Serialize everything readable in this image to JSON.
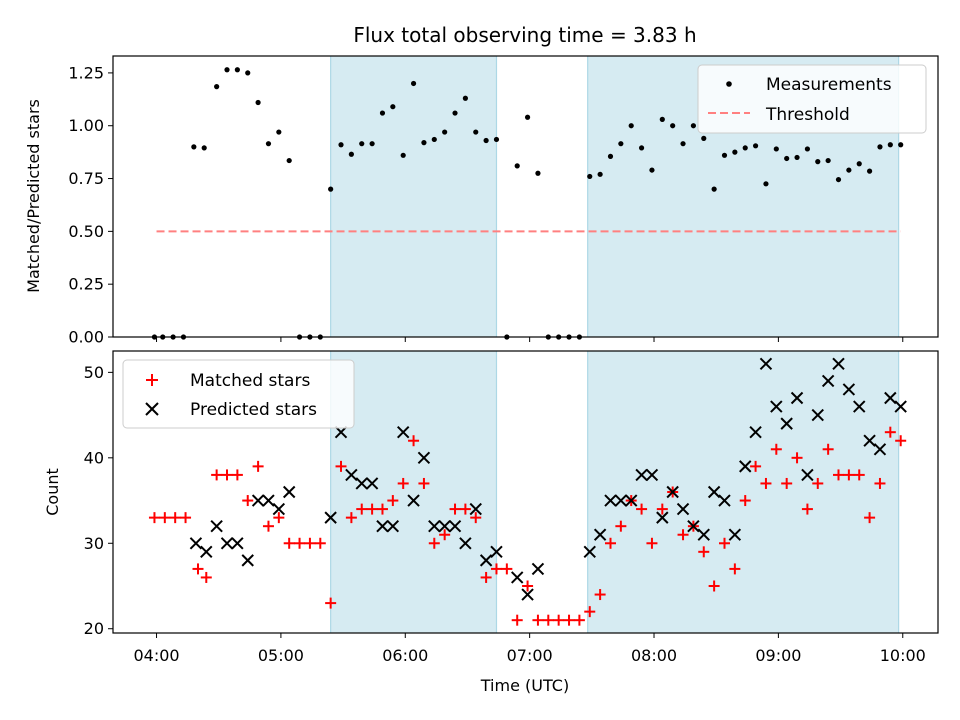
{
  "chart_data": [
    {
      "type": "scatter",
      "panel": "top",
      "title": "Flux total observing time = 3.83 h",
      "ylabel": "Matched/Predicted stars",
      "ylim": [
        0,
        1.33
      ],
      "yticks": [
        0.0,
        0.25,
        0.5,
        0.75,
        1.0,
        1.25
      ],
      "ytick_labels": [
        "0.00",
        "0.25",
        "0.50",
        "0.75",
        "1.00",
        "1.25"
      ],
      "grid": false,
      "legend_position": "top-right",
      "shaded_intervals": [
        [
          "05:24",
          "06:44"
        ],
        [
          "07:28",
          "09:58"
        ]
      ],
      "threshold": {
        "name": "Threshold",
        "y": 0.5,
        "x_range": [
          "04:00",
          "09:59"
        ],
        "color": "#ff8080",
        "style": "dashed"
      },
      "series": [
        {
          "name": "Measurements",
          "color": "#000000",
          "marker": "dot",
          "points": [
            [
              "03:59",
              0
            ],
            [
              "04:03",
              0
            ],
            [
              "04:08",
              0
            ],
            [
              "04:13",
              0
            ],
            [
              "04:18",
              0.9
            ],
            [
              "04:23",
              0.895
            ],
            [
              "04:29",
              1.185
            ],
            [
              "04:34",
              1.265
            ],
            [
              "04:39",
              1.265
            ],
            [
              "04:44",
              1.25
            ],
            [
              "04:49",
              1.11
            ],
            [
              "04:54",
              0.915
            ],
            [
              "04:59",
              0.97
            ],
            [
              "05:04",
              0.835
            ],
            [
              "05:09",
              0
            ],
            [
              "05:14",
              0
            ],
            [
              "05:19",
              0
            ],
            [
              "05:24",
              0.7
            ],
            [
              "05:29",
              0.91
            ],
            [
              "05:34",
              0.865
            ],
            [
              "05:39",
              0.915
            ],
            [
              "05:44",
              0.915
            ],
            [
              "05:49",
              1.06
            ],
            [
              "05:54",
              1.09
            ],
            [
              "05:59",
              0.86
            ],
            [
              "06:04",
              1.2
            ],
            [
              "06:09",
              0.92
            ],
            [
              "06:14",
              0.935
            ],
            [
              "06:19",
              0.97
            ],
            [
              "06:24",
              1.06
            ],
            [
              "06:29",
              1.13
            ],
            [
              "06:34",
              0.97
            ],
            [
              "06:39",
              0.93
            ],
            [
              "06:44",
              0.935
            ],
            [
              "06:49",
              0
            ],
            [
              "06:54",
              0.81
            ],
            [
              "06:59",
              1.04
            ],
            [
              "07:04",
              0.775
            ],
            [
              "07:09",
              0
            ],
            [
              "07:14",
              0
            ],
            [
              "07:19",
              0
            ],
            [
              "07:24",
              0
            ],
            [
              "07:29",
              0.76
            ],
            [
              "07:34",
              0.77
            ],
            [
              "07:39",
              0.855
            ],
            [
              "07:44",
              0.915
            ],
            [
              "07:49",
              1.0
            ],
            [
              "07:54",
              0.895
            ],
            [
              "07:59",
              0.79
            ],
            [
              "08:04",
              1.03
            ],
            [
              "08:09",
              1.0
            ],
            [
              "08:14",
              0.915
            ],
            [
              "08:19",
              1.0
            ],
            [
              "08:24",
              0.94
            ],
            [
              "08:29",
              0.7
            ],
            [
              "08:34",
              0.86
            ],
            [
              "08:39",
              0.875
            ],
            [
              "08:44",
              0.895
            ],
            [
              "08:49",
              0.905
            ],
            [
              "08:54",
              0.725
            ],
            [
              "08:59",
              0.89
            ],
            [
              "09:04",
              0.845
            ],
            [
              "09:09",
              0.85
            ],
            [
              "09:14",
              0.89
            ],
            [
              "09:19",
              0.83
            ],
            [
              "09:24",
              0.835
            ],
            [
              "09:29",
              0.745
            ],
            [
              "09:34",
              0.79
            ],
            [
              "09:39",
              0.82
            ],
            [
              "09:44",
              0.785
            ],
            [
              "09:49",
              0.9
            ],
            [
              "09:54",
              0.91
            ],
            [
              "09:59",
              0.91
            ]
          ]
        }
      ]
    },
    {
      "type": "scatter",
      "panel": "bottom",
      "xlabel": "Time (UTC)",
      "ylabel": "Count",
      "ylim": [
        19.5,
        52.5
      ],
      "yticks": [
        20,
        30,
        40,
        50
      ],
      "xlim": [
        "03:39",
        "10:17"
      ],
      "xticks": [
        "04:00",
        "05:00",
        "06:00",
        "07:00",
        "08:00",
        "09:00",
        "10:00"
      ],
      "grid": false,
      "legend_position": "top-left",
      "shaded_intervals": [
        [
          "05:24",
          "06:44"
        ],
        [
          "07:28",
          "09:58"
        ]
      ],
      "series": [
        {
          "name": "Matched stars",
          "color": "#ff0000",
          "marker": "plus",
          "points": [
            [
              "03:59",
              33
            ],
            [
              "04:04",
              33
            ],
            [
              "04:09",
              33
            ],
            [
              "04:14",
              33
            ],
            [
              "04:20",
              27
            ],
            [
              "04:24",
              26
            ],
            [
              "04:29",
              38
            ],
            [
              "04:34",
              38
            ],
            [
              "04:39",
              38
            ],
            [
              "04:44",
              35
            ],
            [
              "04:49",
              39
            ],
            [
              "04:54",
              32
            ],
            [
              "04:59",
              33
            ],
            [
              "05:04",
              30
            ],
            [
              "05:09",
              30
            ],
            [
              "05:14",
              30
            ],
            [
              "05:19",
              30
            ],
            [
              "05:24",
              23
            ],
            [
              "05:29",
              39
            ],
            [
              "05:34",
              33
            ],
            [
              "05:39",
              34
            ],
            [
              "05:44",
              34
            ],
            [
              "05:49",
              34
            ],
            [
              "05:54",
              35
            ],
            [
              "05:59",
              37
            ],
            [
              "06:04",
              42
            ],
            [
              "06:09",
              37
            ],
            [
              "06:14",
              30
            ],
            [
              "06:19",
              31
            ],
            [
              "06:24",
              34
            ],
            [
              "06:29",
              34
            ],
            [
              "06:34",
              33
            ],
            [
              "06:39",
              26
            ],
            [
              "06:44",
              27
            ],
            [
              "06:49",
              27
            ],
            [
              "06:54",
              21
            ],
            [
              "06:59",
              25
            ],
            [
              "07:04",
              21
            ],
            [
              "07:09",
              21
            ],
            [
              "07:14",
              21
            ],
            [
              "07:19",
              21
            ],
            [
              "07:24",
              21
            ],
            [
              "07:29",
              22
            ],
            [
              "07:34",
              24
            ],
            [
              "07:39",
              30
            ],
            [
              "07:44",
              32
            ],
            [
              "07:49",
              35
            ],
            [
              "07:54",
              34
            ],
            [
              "07:59",
              30
            ],
            [
              "08:04",
              34
            ],
            [
              "08:09",
              36
            ],
            [
              "08:14",
              31
            ],
            [
              "08:19",
              32
            ],
            [
              "08:24",
              29
            ],
            [
              "08:29",
              25
            ],
            [
              "08:34",
              30
            ],
            [
              "08:39",
              27
            ],
            [
              "08:44",
              35
            ],
            [
              "08:49",
              39
            ],
            [
              "08:54",
              37
            ],
            [
              "08:59",
              41
            ],
            [
              "09:04",
              37
            ],
            [
              "09:09",
              40
            ],
            [
              "09:14",
              34
            ],
            [
              "09:19",
              37
            ],
            [
              "09:24",
              41
            ],
            [
              "09:29",
              38
            ],
            [
              "09:34",
              38
            ],
            [
              "09:39",
              38
            ],
            [
              "09:44",
              33
            ],
            [
              "09:49",
              37
            ],
            [
              "09:54",
              43
            ],
            [
              "09:59",
              42
            ]
          ]
        },
        {
          "name": "Predicted stars",
          "color": "#000000",
          "marker": "x",
          "points": [
            [
              "04:19",
              30
            ],
            [
              "04:24",
              29
            ],
            [
              "04:29",
              32
            ],
            [
              "04:34",
              30
            ],
            [
              "04:39",
              30
            ],
            [
              "04:44",
              28
            ],
            [
              "04:49",
              35
            ],
            [
              "04:54",
              35
            ],
            [
              "04:59",
              34
            ],
            [
              "05:04",
              36
            ],
            [
              "05:24",
              33
            ],
            [
              "05:29",
              43
            ],
            [
              "05:34",
              38
            ],
            [
              "05:39",
              37
            ],
            [
              "05:44",
              37
            ],
            [
              "05:49",
              32
            ],
            [
              "05:54",
              32
            ],
            [
              "05:59",
              43
            ],
            [
              "06:04",
              35
            ],
            [
              "06:09",
              40
            ],
            [
              "06:14",
              32
            ],
            [
              "06:19",
              32
            ],
            [
              "06:24",
              32
            ],
            [
              "06:29",
              30
            ],
            [
              "06:34",
              34
            ],
            [
              "06:39",
              28
            ],
            [
              "06:44",
              29
            ],
            [
              "06:54",
              26
            ],
            [
              "06:59",
              24
            ],
            [
              "07:04",
              27
            ],
            [
              "07:29",
              29
            ],
            [
              "07:34",
              31
            ],
            [
              "07:39",
              35
            ],
            [
              "07:44",
              35
            ],
            [
              "07:49",
              35
            ],
            [
              "07:54",
              38
            ],
            [
              "07:59",
              38
            ],
            [
              "08:04",
              33
            ],
            [
              "08:09",
              36
            ],
            [
              "08:14",
              34
            ],
            [
              "08:19",
              32
            ],
            [
              "08:24",
              31
            ],
            [
              "08:29",
              36
            ],
            [
              "08:34",
              35
            ],
            [
              "08:39",
              31
            ],
            [
              "08:44",
              39
            ],
            [
              "08:49",
              43
            ],
            [
              "08:54",
              51
            ],
            [
              "08:59",
              46
            ],
            [
              "09:04",
              44
            ],
            [
              "09:09",
              47
            ],
            [
              "09:14",
              38
            ],
            [
              "09:19",
              45
            ],
            [
              "09:24",
              49
            ],
            [
              "09:29",
              51
            ],
            [
              "09:34",
              48
            ],
            [
              "09:39",
              46
            ],
            [
              "09:44",
              42
            ],
            [
              "09:49",
              41
            ],
            [
              "09:54",
              47
            ],
            [
              "09:59",
              46
            ]
          ]
        }
      ]
    }
  ],
  "colors": {
    "shade": "#add8e6",
    "shade_alpha": 0.5
  }
}
